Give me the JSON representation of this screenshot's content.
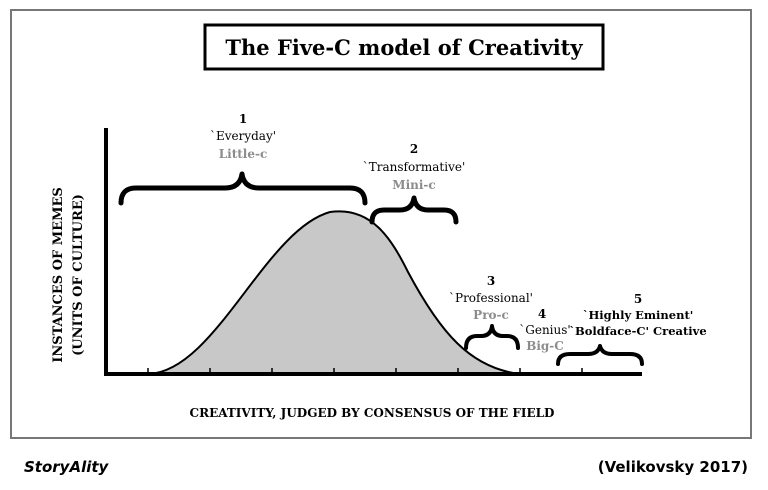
{
  "title": "The Five-C model of Creativity",
  "y_axis_label_line1": "INSTANCES OF MEMES",
  "y_axis_label_line2": "(UNITS OF CULTURE)",
  "x_axis_label": "CREATIVITY, JUDGED BY CONSENSUS OF THE FIELD",
  "categories": [
    {
      "number": "1",
      "name": "`Everyday'",
      "label": "Little-c"
    },
    {
      "number": "2",
      "name": "`Transformative'",
      "label": "Mini-c"
    },
    {
      "number": "3",
      "name": "`Professional'",
      "label": "Pro-c"
    },
    {
      "number": "4",
      "name": "`Genius'",
      "label": "Big-C"
    },
    {
      "number": "5",
      "name": "`Highly Eminent'",
      "label": "`Boldface-C' Creative"
    }
  ],
  "footer": {
    "brand": "StoryAlity",
    "citation": "(Velikovsky 2017)"
  },
  "colors": {
    "curve_fill": "#c8c8c8",
    "category_label": "#8c8c8c",
    "frame": "#777777"
  }
}
